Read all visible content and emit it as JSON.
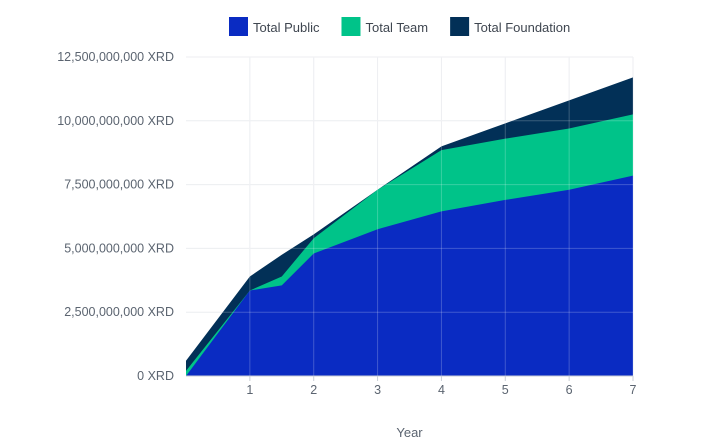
{
  "chart_data": {
    "type": "area",
    "stacked": true,
    "xlabel": "Year",
    "ylabel": "",
    "xlim": [
      0,
      7
    ],
    "ylim": [
      0,
      12500000000
    ],
    "x_ticks": [
      1,
      2,
      3,
      4,
      5,
      6,
      7
    ],
    "y_ticks": [
      0,
      2500000000,
      5000000000,
      7500000000,
      10000000000,
      12500000000
    ],
    "y_tick_labels": [
      "0 XRD",
      "2,500,000,000 XRD",
      "5,000,000,000 XRD",
      "7,500,000,000 XRD",
      "10,000,000,000 XRD",
      "12,500,000,000 XRD"
    ],
    "grid": true,
    "legend_position": "top-center",
    "series": [
      {
        "name": "Total Public",
        "color": "#0a2bc2",
        "points": [
          [
            0,
            0
          ],
          [
            1,
            3350000000
          ],
          [
            1.5,
            3550000000
          ],
          [
            2,
            4800000000
          ],
          [
            3,
            5750000000
          ],
          [
            4,
            6450000000
          ],
          [
            5,
            6900000000
          ],
          [
            6,
            7300000000
          ],
          [
            7,
            7850000000
          ]
        ]
      },
      {
        "name": "Total Team",
        "color": "#00c389",
        "points": [
          [
            0,
            200000000
          ],
          [
            1,
            3350000000
          ],
          [
            1.5,
            3900000000
          ],
          [
            2,
            5400000000
          ],
          [
            3,
            7300000000
          ],
          [
            4,
            8850000000
          ],
          [
            5,
            9300000000
          ],
          [
            6,
            9700000000
          ],
          [
            7,
            10250000000
          ]
        ]
      },
      {
        "name": "Total Foundation",
        "color": "#023057",
        "points": [
          [
            0,
            600000000
          ],
          [
            1,
            3900000000
          ],
          [
            1.5,
            4750000000
          ],
          [
            2,
            5550000000
          ],
          [
            3,
            7300000000
          ],
          [
            4,
            9000000000
          ],
          [
            5,
            9900000000
          ],
          [
            6,
            10800000000
          ],
          [
            7,
            11700000000
          ]
        ]
      }
    ]
  }
}
